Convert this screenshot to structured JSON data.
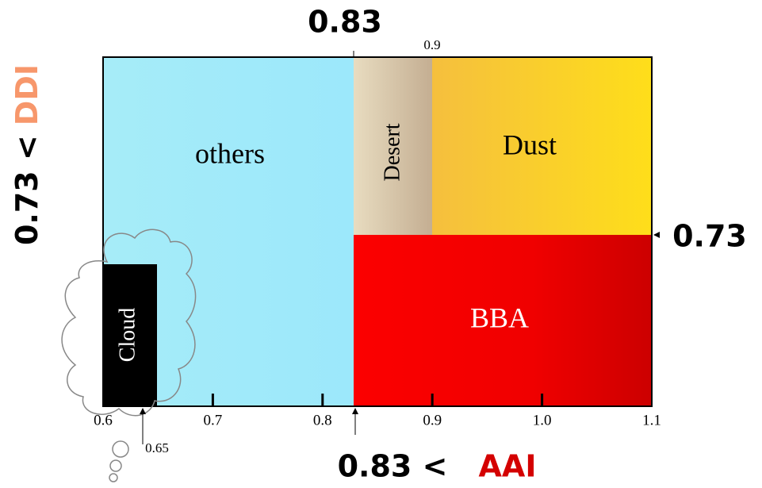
{
  "annotations": {
    "top_threshold": "0.83",
    "top_small": "0.9",
    "right_threshold": "0.73",
    "bottom_small": "0.65",
    "ddi_prefix": "0.73 <",
    "ddi_name": "DDI",
    "aai_prefix": "0.83 <",
    "aai_name": "AAI"
  },
  "regions": {
    "others": "others",
    "desert": "Desert",
    "dust": "Dust",
    "bba": "BBA",
    "cloud": "Cloud"
  },
  "x_ticks": [
    "0.6",
    "0.7",
    "0.8",
    "0.9",
    "1.0",
    "1.1"
  ]
}
